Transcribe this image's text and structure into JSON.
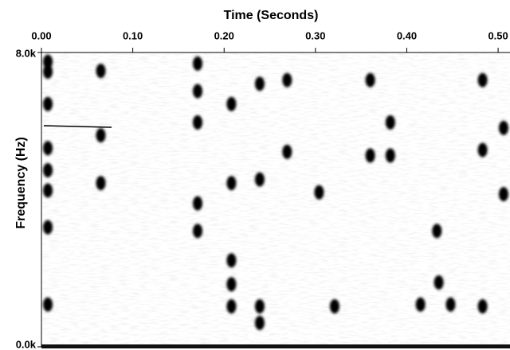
{
  "chart_data": {
    "type": "spectrogram",
    "title": "Time (Seconds)",
    "y_label": "Frequency (Hz)",
    "xlim": [
      0,
      0.513
    ],
    "xticks": [
      {
        "value": 0,
        "label": "0.00"
      },
      {
        "value": 0.1,
        "label": "0.10"
      },
      {
        "value": 0.2,
        "label": "0.20"
      },
      {
        "value": 0.3,
        "label": "0.30"
      },
      {
        "value": 0.4,
        "label": "0.40"
      },
      {
        "value": 0.5,
        "label": "0.50"
      }
    ],
    "ylim": [
      0,
      8000
    ],
    "yticks": [
      {
        "value": 0,
        "label": "0.0k"
      },
      {
        "value": 8000,
        "label": "8.0k"
      }
    ],
    "color": "#000000",
    "x": [
      0.007,
      0.007,
      0.007,
      0.007,
      0.007,
      0.007,
      0.007,
      0.007,
      0.065,
      0.065,
      0.065,
      0.171,
      0.171,
      0.171,
      0.171,
      0.171,
      0.208,
      0.208,
      0.208,
      0.208,
      0.208,
      0.239,
      0.239,
      0.239,
      0.239,
      0.269,
      0.269,
      0.304,
      0.321,
      0.36,
      0.36,
      0.382,
      0.382,
      0.415,
      0.433,
      0.448,
      0.435,
      0.483,
      0.483,
      0.483,
      0.506,
      0.506
    ],
    "values": [
      7750,
      7480,
      6600,
      5400,
      4800,
      4250,
      3250,
      1150,
      7500,
      5750,
      4450,
      7700,
      6950,
      6100,
      3900,
      3150,
      6600,
      4450,
      2350,
      1700,
      1100,
      7150,
      4550,
      1100,
      650,
      7250,
      5300,
      4200,
      1100,
      7250,
      5200,
      6100,
      5200,
      1150,
      3150,
      1150,
      1750,
      7250,
      5350,
      1100,
      5950,
      4150
    ]
  }
}
